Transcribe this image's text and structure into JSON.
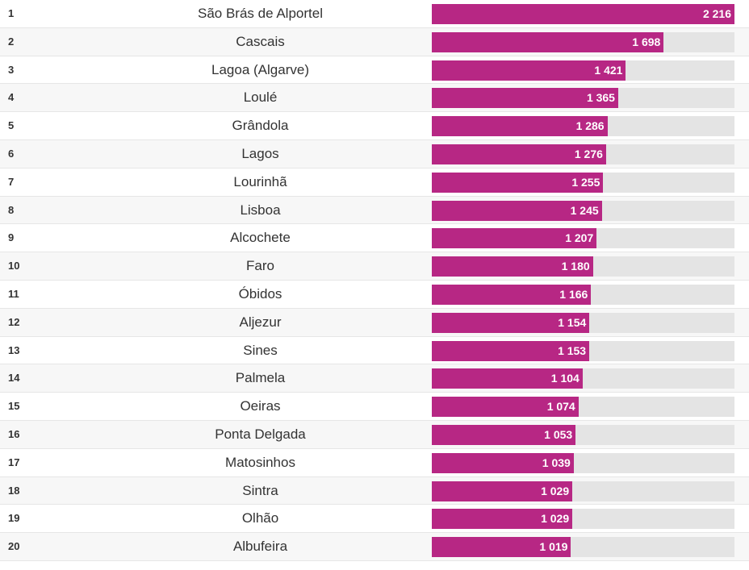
{
  "colors": {
    "bar": "#b72784",
    "track": "#e4e4e4",
    "alt_row": "#f7f7f7",
    "divider": "#e6e6e6",
    "text": "#333333",
    "value_text": "#ffffff"
  },
  "chart_data": {
    "type": "bar",
    "orientation": "horizontal",
    "max_value": 2216,
    "rows": [
      {
        "rank": "1",
        "name": "São Brás de Alportel",
        "value": 2216,
        "label": "2 216"
      },
      {
        "rank": "2",
        "name": "Cascais",
        "value": 1698,
        "label": "1 698"
      },
      {
        "rank": "3",
        "name": "Lagoa (Algarve)",
        "value": 1421,
        "label": "1 421"
      },
      {
        "rank": "4",
        "name": "Loulé",
        "value": 1365,
        "label": "1 365"
      },
      {
        "rank": "5",
        "name": "Grândola",
        "value": 1286,
        "label": "1 286"
      },
      {
        "rank": "6",
        "name": "Lagos",
        "value": 1276,
        "label": "1 276"
      },
      {
        "rank": "7",
        "name": "Lourinhã",
        "value": 1255,
        "label": "1 255"
      },
      {
        "rank": "8",
        "name": "Lisboa",
        "value": 1245,
        "label": "1 245"
      },
      {
        "rank": "9",
        "name": "Alcochete",
        "value": 1207,
        "label": "1 207"
      },
      {
        "rank": "10",
        "name": "Faro",
        "value": 1180,
        "label": "1 180"
      },
      {
        "rank": "11",
        "name": "Óbidos",
        "value": 1166,
        "label": "1 166"
      },
      {
        "rank": "12",
        "name": "Aljezur",
        "value": 1154,
        "label": "1 154"
      },
      {
        "rank": "13",
        "name": "Sines",
        "value": 1153,
        "label": "1 153"
      },
      {
        "rank": "14",
        "name": "Palmela",
        "value": 1104,
        "label": "1 104"
      },
      {
        "rank": "15",
        "name": "Oeiras",
        "value": 1074,
        "label": "1 074"
      },
      {
        "rank": "16",
        "name": "Ponta Delgada",
        "value": 1053,
        "label": "1 053"
      },
      {
        "rank": "17",
        "name": "Matosinhos",
        "value": 1039,
        "label": "1 039"
      },
      {
        "rank": "18",
        "name": "Sintra",
        "value": 1029,
        "label": "1 029"
      },
      {
        "rank": "19",
        "name": "Olhão",
        "value": 1029,
        "label": "1 029"
      },
      {
        "rank": "20",
        "name": "Albufeira",
        "value": 1019,
        "label": "1 019"
      }
    ]
  }
}
